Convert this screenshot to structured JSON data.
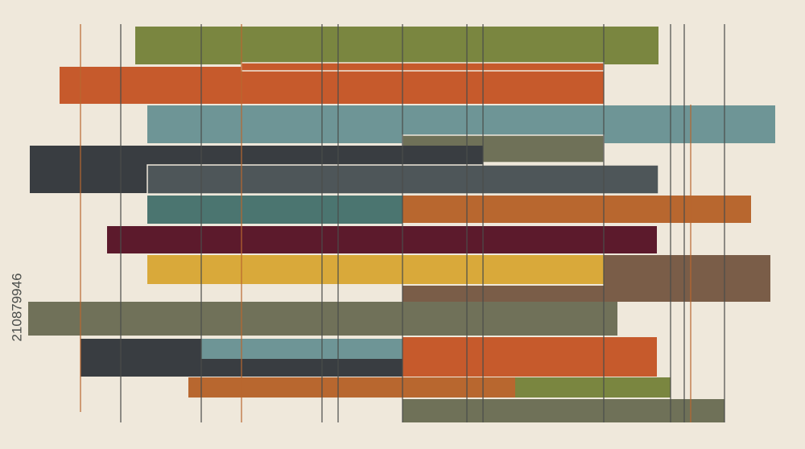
{
  "image": {
    "stock_id": "210879946"
  }
}
